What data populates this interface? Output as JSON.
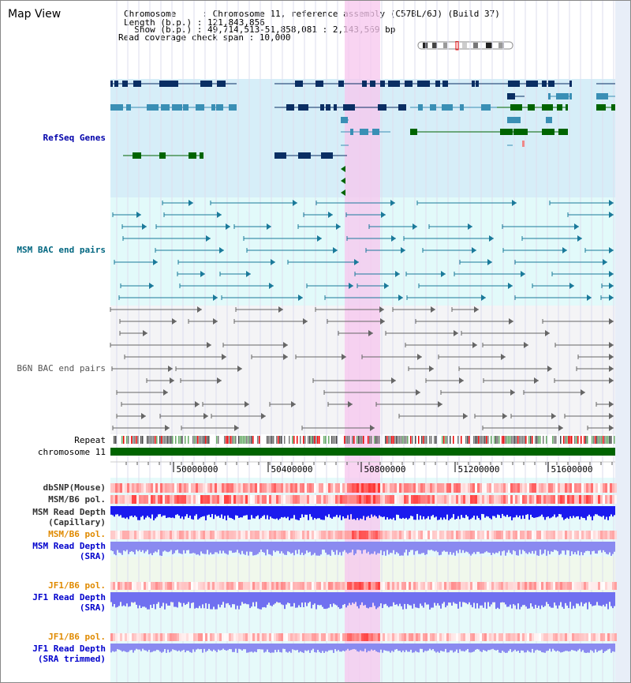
{
  "title": "Map View",
  "info": {
    "chromosome": "Chromosome     : Chromosome 11, reference assembly (C57BL/6J) (Build 37)",
    "length": "Length (b.p.) : 121,843,856",
    "show": "  Show (b.p.) : 49,714,513-51,858,081 : 2,143,569 bp",
    "span": "Read coverage check span : 10,000"
  },
  "tracks": {
    "refseq": "RefSeq Genes",
    "msm_bac": "MSM BAC end pairs",
    "b6n_bac": "B6N BAC end pairs",
    "repeat": "Repeat",
    "chromosome": "chromosome 11",
    "dbsnp": "dbSNP(Mouse)",
    "msm_pol": "MSM/B6 pol.",
    "msm_depth_cap_1": "MSM Read Depth",
    "msm_depth_cap_2": "(Capillary)",
    "msm_pol_sra": "MSM/B6 pol.",
    "msm_depth_sra_1": "MSM Read Depth",
    "msm_depth_sra_2": "(SRA)",
    "jf1_pol": "JF1/B6 pol.",
    "jf1_depth_1": "JF1 Read Depth",
    "jf1_depth_2": "(SRA)",
    "jf1_pol_2": "JF1/B6 pol.",
    "jf1_trim_1": "JF1 Read Depth",
    "jf1_trim_2": "(SRA trimmed)"
  },
  "axis": {
    "ticks": [
      "50000000",
      "50400000",
      "50800000",
      "51200000",
      "51600000"
    ]
  },
  "colors": {
    "refseq_label": "#0000aa",
    "msm_label": "#006680",
    "b6n_label": "#555555",
    "orange_label": "#e08a00",
    "blue_label": "#0000cc",
    "highlight": "#f7c6ee",
    "refseq_bg": "#d6eef8",
    "msm_bg": "#e2fafa",
    "b6n_bg": "#f4f4f6"
  }
}
